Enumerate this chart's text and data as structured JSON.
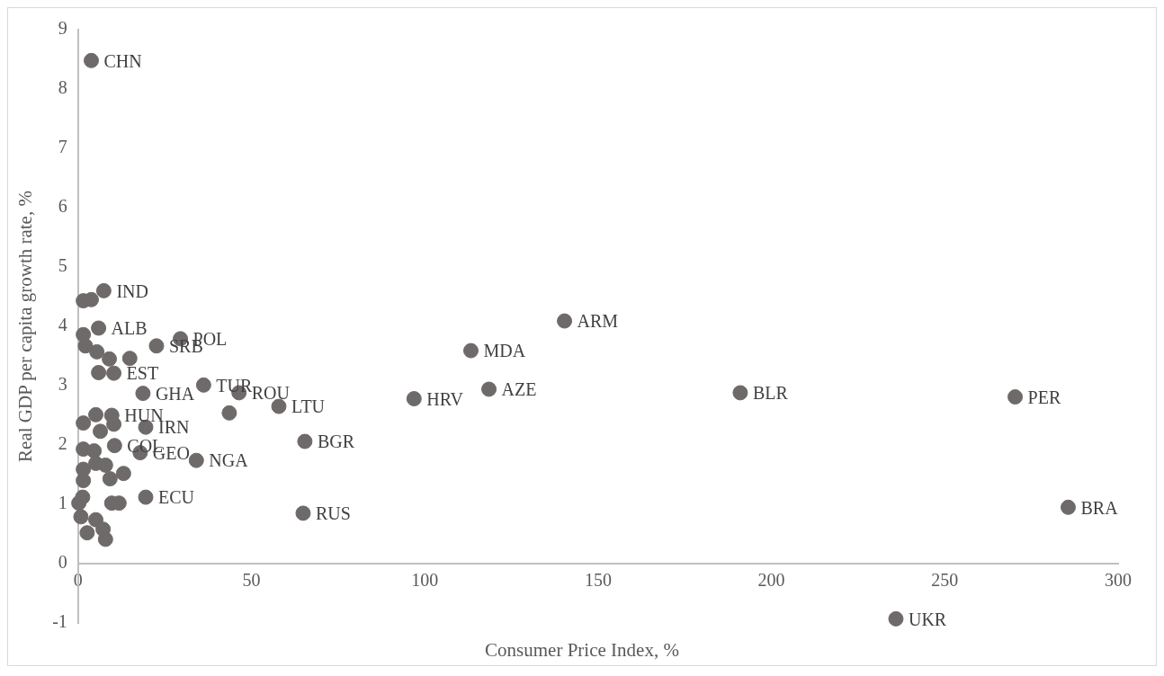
{
  "chart_data": {
    "type": "scatter",
    "xlabel": "Consumer Price Index, %",
    "ylabel": "Real GDP per capita growth rate, %",
    "xlim": [
      0,
      300
    ],
    "xticks": [
      0,
      50,
      100,
      150,
      200,
      250,
      300
    ],
    "ylim": [
      -1,
      9
    ],
    "yticks": [
      -1,
      0,
      1,
      2,
      3,
      4,
      5,
      6,
      7,
      8,
      9
    ],
    "grid": false,
    "legend": false,
    "marker": "circle",
    "series": [
      {
        "color": "#6f6a6a",
        "x": [
          3.8,
          7.4,
          1.5,
          3.8,
          5.9,
          1.5,
          2.1,
          5.4,
          9.0,
          14.9,
          22.6,
          29.5,
          10.3,
          5.9,
          18.7,
          36.2,
          46.4,
          43.6,
          57.9,
          65.4,
          64.9,
          1.5,
          5.1,
          9.7,
          6.4,
          10.3,
          19.5,
          10.5,
          17.9,
          34.1,
          1.5,
          4.6,
          1.5,
          5.1,
          7.9,
          13.1,
          9.2,
          1.5,
          0.2,
          1.3,
          9.7,
          11.8,
          19.5,
          0.8,
          5.1,
          7.2,
          2.6,
          7.9,
          140.3,
          113.3,
          118.5,
          96.9,
          191,
          270.3,
          285.6,
          235.9
        ],
        "values": [
          8.48,
          4.6,
          4.43,
          4.45,
          3.97,
          3.86,
          3.67,
          3.57,
          3.45,
          3.46,
          3.67,
          3.79,
          3.21,
          3.22,
          2.87,
          3.01,
          2.88,
          2.54,
          2.65,
          2.06,
          0.85,
          2.37,
          2.51,
          2.5,
          2.23,
          2.35,
          2.3,
          1.99,
          1.87,
          1.74,
          1.93,
          1.9,
          1.59,
          1.69,
          1.66,
          1.52,
          1.43,
          1.4,
          1.02,
          1.12,
          1.02,
          1.02,
          1.12,
          0.79,
          0.74,
          0.58,
          0.52,
          0.41,
          4.09,
          3.59,
          2.94,
          2.78,
          2.88,
          2.81,
          0.95,
          -0.93
        ]
      }
    ],
    "annotations": [
      {
        "text": "CHN",
        "x": 3.8,
        "y": 8.48
      },
      {
        "text": "IND",
        "x": 7.4,
        "y": 4.6
      },
      {
        "text": "ALB",
        "x": 5.9,
        "y": 3.97
      },
      {
        "text": "POL",
        "x": 29.5,
        "y": 3.79
      },
      {
        "text": "SRB",
        "x": 22.6,
        "y": 3.67
      },
      {
        "text": "EST",
        "x": 10.3,
        "y": 3.21
      },
      {
        "text": "TUR",
        "x": 36.2,
        "y": 3.01
      },
      {
        "text": "ROU",
        "x": 46.4,
        "y": 2.88
      },
      {
        "text": "GHA",
        "x": 18.7,
        "y": 2.87
      },
      {
        "text": "LTU",
        "x": 57.9,
        "y": 2.65
      },
      {
        "text": "HUN",
        "x": 9.7,
        "y": 2.5
      },
      {
        "text": "IRN",
        "x": 19.5,
        "y": 2.3
      },
      {
        "text": "BGR",
        "x": 65.4,
        "y": 2.06
      },
      {
        "text": "COL",
        "x": 10.5,
        "y": 1.99
      },
      {
        "text": "NGA",
        "x": 34.1,
        "y": 1.74
      },
      {
        "text": "GEO",
        "x": 17.9,
        "y": 1.87
      },
      {
        "text": "ECU",
        "x": 19.5,
        "y": 1.12
      },
      {
        "text": "RUS",
        "x": 64.9,
        "y": 0.85
      },
      {
        "text": "ARM",
        "x": 140.3,
        "y": 4.09
      },
      {
        "text": "MDA",
        "x": 113.3,
        "y": 3.59
      },
      {
        "text": "AZE",
        "x": 118.5,
        "y": 2.94
      },
      {
        "text": "HRV",
        "x": 96.9,
        "y": 2.78
      },
      {
        "text": "BLR",
        "x": 191,
        "y": 2.88
      },
      {
        "text": "PER",
        "x": 270.3,
        "y": 2.81
      },
      {
        "text": "BRA",
        "x": 285.6,
        "y": 0.95
      },
      {
        "text": "UKR",
        "x": 235.9,
        "y": -0.93
      }
    ]
  }
}
